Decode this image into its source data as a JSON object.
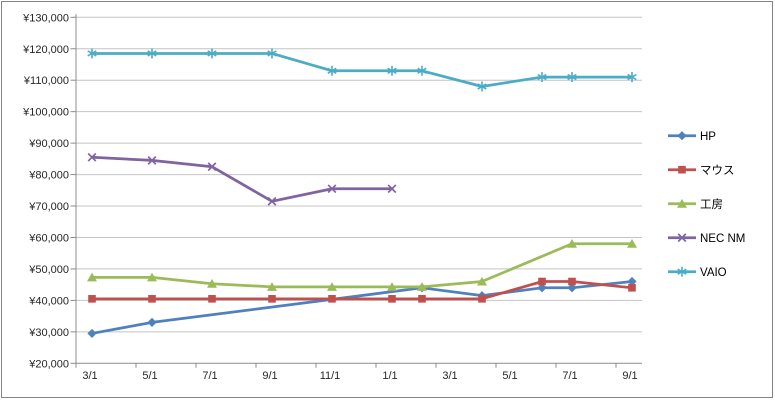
{
  "chart_data": {
    "type": "line",
    "title": "",
    "x_axis": {
      "labels": [
        "3/1",
        "5/1",
        "7/1",
        "9/1",
        "11/1",
        "1/1",
        "3/1",
        "5/1",
        "7/1",
        "9/1"
      ],
      "label_month_offsets": [
        0,
        2,
        4,
        6,
        8,
        10,
        12,
        14,
        16,
        18
      ]
    },
    "y_axis": {
      "min": 20000,
      "max": 130000,
      "step": 10000,
      "tick_labels": [
        "¥130,000",
        "¥120,000",
        "¥110,000",
        "¥100,000",
        "¥90,000",
        "¥80,000",
        "¥70,000",
        "¥60,000",
        "¥50,000",
        "¥40,000",
        "¥30,000",
        "¥20,000"
      ],
      "currency_prefix": "¥"
    },
    "grid": true,
    "legend": {
      "position": "right",
      "items": [
        "HP",
        "マウス",
        "工房",
        "NEC NM",
        "VAIO"
      ]
    },
    "series": [
      {
        "name": "HP",
        "color": "#4F81BD",
        "marker": "diamond",
        "x_months": [
          0,
          2,
          11,
          13,
          15,
          16,
          18
        ],
        "values": [
          29500,
          33000,
          44000,
          41500,
          44000,
          44000,
          46000
        ]
      },
      {
        "name": "マウス",
        "color": "#C0504D",
        "marker": "square",
        "x_months": [
          0,
          2,
          4,
          6,
          8,
          10,
          11,
          13,
          15,
          16,
          18
        ],
        "values": [
          40500,
          40500,
          40500,
          40500,
          40500,
          40500,
          40500,
          40500,
          46000,
          46000,
          44000
        ]
      },
      {
        "name": "工房",
        "color": "#9BBB59",
        "marker": "triangle",
        "x_months": [
          0,
          2,
          4,
          6,
          8,
          10,
          11,
          13,
          16,
          18
        ],
        "values": [
          47300,
          47300,
          45300,
          44300,
          44300,
          44300,
          44300,
          46000,
          58000,
          58000
        ]
      },
      {
        "name": "NEC NM",
        "color": "#8064A2",
        "marker": "x",
        "x_months": [
          0,
          2,
          4,
          6,
          8,
          10
        ],
        "values": [
          85500,
          84500,
          82500,
          71500,
          75500,
          75500
        ]
      },
      {
        "name": "VAIO",
        "color": "#4BACC6",
        "marker": "asterisk",
        "x_months": [
          0,
          2,
          4,
          6,
          8,
          10,
          11,
          13,
          15,
          16,
          18
        ],
        "values": [
          118500,
          118500,
          118500,
          118500,
          113000,
          113000,
          113000,
          108000,
          111000,
          111000,
          111000
        ]
      }
    ],
    "colors": {
      "background": "#FFFFFF",
      "frame_border": "#848484",
      "gridline": "#C4C4C4",
      "axis_line": "#8C8C8C",
      "tick_text": "#262626",
      "legend_text": "#000000"
    }
  }
}
